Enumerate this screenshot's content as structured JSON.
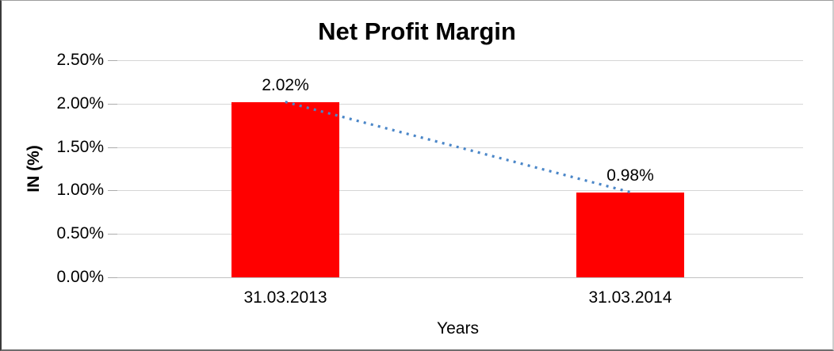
{
  "chart_data": {
    "type": "bar",
    "title": "Net Profit Margin",
    "categories": [
      "31.03.2013",
      "31.03.2014"
    ],
    "values": [
      2.02,
      0.98
    ],
    "data_labels": [
      "2.02%",
      "0.98%"
    ],
    "xlabel": "Years",
    "ylabel": "IN (%)",
    "y_ticks": [
      "2.50%",
      "2.00%",
      "1.50%",
      "1.00%",
      "0.50%",
      "0.00%"
    ],
    "ylim": [
      0,
      2.5
    ],
    "grid": true,
    "legend": "none",
    "bar_color": "#ff0000",
    "gridline_color": "#d6d6d6",
    "axis_line_color": "#c2c2c2",
    "trendline": {
      "style": "dotted",
      "color": "#4a86c8",
      "from": 2.02,
      "to": 0.98
    }
  }
}
